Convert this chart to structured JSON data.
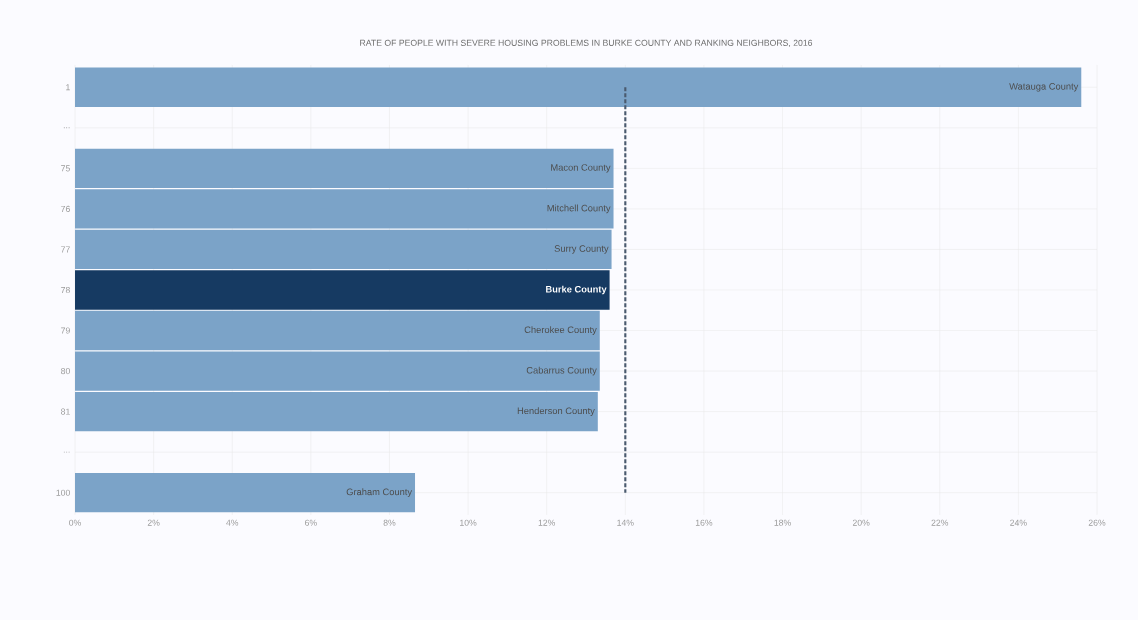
{
  "chart_data": {
    "type": "bar",
    "orientation": "horizontal",
    "title": "RATE OF PEOPLE WITH SEVERE HOUSING PROBLEMS IN BURKE COUNTY AND RANKING NEIGHBORS, 2016",
    "categories": [
      "1",
      "...",
      "75",
      "76",
      "77",
      "78",
      "79",
      "80",
      "81",
      "...",
      "100"
    ],
    "values": [
      25.6,
      null,
      13.7,
      13.7,
      13.65,
      13.6,
      13.35,
      13.35,
      13.3,
      null,
      8.65
    ],
    "colors": [
      "#7ba3c8",
      null,
      "#7ba3c8",
      "#7ba3c8",
      "#7ba3c8",
      "#163a62",
      "#7ba3c8",
      "#7ba3c8",
      "#7ba3c8",
      null,
      "#7ba3c8"
    ],
    "xlim": [
      0,
      26
    ],
    "xticks": [
      {
        "value": 0,
        "label": "0%"
      },
      {
        "value": 2,
        "label": "2%"
      },
      {
        "value": 4,
        "label": "4%"
      },
      {
        "value": 6,
        "label": "6%"
      },
      {
        "value": 8,
        "label": "8%"
      },
      {
        "value": 10,
        "label": "10%"
      },
      {
        "value": 12,
        "label": "12%"
      },
      {
        "value": 14,
        "label": "14%"
      },
      {
        "value": 16,
        "label": "16%"
      },
      {
        "value": 18,
        "label": "18%"
      },
      {
        "value": 20,
        "label": "20%"
      },
      {
        "value": 22,
        "label": "22%"
      },
      {
        "value": 24,
        "label": "24%"
      },
      {
        "value": 26,
        "label": "26%"
      }
    ],
    "grid": true,
    "ref_lines": [
      {
        "axis": "x",
        "value": 14,
        "color": "#4a5a6e",
        "line_style": "dashed"
      }
    ],
    "annotations": [
      {
        "text": "Watauga County",
        "x": 25.6,
        "y": "1"
      },
      {
        "text": "Macon County",
        "x": 13.7,
        "y": "75"
      },
      {
        "text": "Mitchell County",
        "x": 13.7,
        "y": "76"
      },
      {
        "text": "Surry County",
        "x": 13.65,
        "y": "77"
      },
      {
        "text": "Burke County",
        "x": 13.6,
        "y": "78"
      },
      {
        "text": "Cherokee County",
        "x": 13.35,
        "y": "79"
      },
      {
        "text": "Cabarrus County",
        "x": 13.35,
        "y": "80"
      },
      {
        "text": "Henderson County",
        "x": 13.3,
        "y": "81"
      },
      {
        "text": "Graham County",
        "x": 8.65,
        "y": "100"
      }
    ]
  }
}
